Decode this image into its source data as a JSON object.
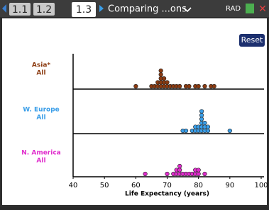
{
  "tabs": [
    "1.1",
    "1.2",
    "1.3"
  ],
  "document_title": "Comparing ...ons",
  "mode": "RAD",
  "button": "Reset",
  "chart_data": {
    "type": "dotplot",
    "xlabel": "Life Expectancy (years)",
    "xlim": [
      40,
      100
    ],
    "xticks": [
      40,
      50,
      60,
      70,
      80,
      90,
      100
    ],
    "series": [
      {
        "name": "Asia*",
        "subtitle": "All",
        "color": "#8b3a10",
        "values": [
          60,
          65,
          66,
          67,
          67,
          68,
          68,
          68,
          68,
          68,
          69,
          69,
          69,
          70,
          70,
          71,
          72,
          73,
          74,
          76,
          77,
          79,
          80,
          82,
          84,
          85
        ]
      },
      {
        "name": "W. Europe",
        "subtitle": "All",
        "color": "#3a9ee8",
        "values": [
          75,
          76,
          78,
          79,
          79,
          80,
          80,
          81,
          81,
          81,
          81,
          81,
          81,
          82,
          82,
          82,
          83,
          83,
          90
        ]
      },
      {
        "name": "N. America",
        "subtitle": "All",
        "color": "#e02ccc",
        "values": [
          63,
          70,
          72,
          73,
          73,
          74,
          74,
          74,
          75,
          76,
          77,
          78,
          79,
          79,
          80,
          80,
          82
        ]
      }
    ]
  }
}
